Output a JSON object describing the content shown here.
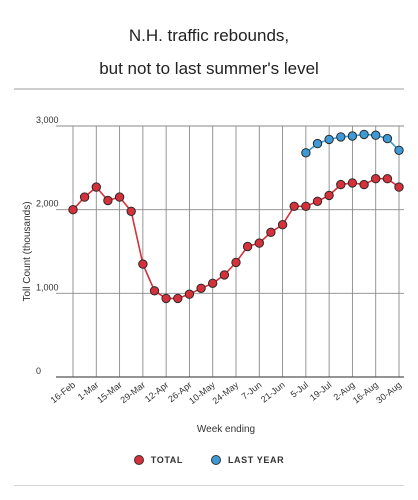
{
  "chart_data": {
    "type": "line",
    "title": "N.H. traffic rebounds, but not to last summer's level",
    "title_lines": [
      "N.H. traffic rebounds,",
      "but not to last summer's level"
    ],
    "xlabel": "Week ending",
    "ylabel": "Toll Count (thousands)",
    "ylim": [
      0,
      3000
    ],
    "yticks": [
      0,
      1000,
      2000,
      3000
    ],
    "ytick_labels": [
      "0",
      "1,000",
      "2,000",
      "3,000"
    ],
    "grid": true,
    "legend_position": "bottom",
    "x_tick_labels": [
      "16-Feb",
      "1-Mar",
      "15-Mar",
      "29-Mar",
      "12-Apr",
      "26-Apr",
      "10-May",
      "24-May",
      "7-Jun",
      "21-Jun",
      "5-Jul",
      "19-Jul",
      "2-Aug",
      "16-Aug",
      "30-Aug"
    ],
    "week_count": 29,
    "series": [
      {
        "name": "TOTAL",
        "color": "#d6303a",
        "start_index": 0,
        "values": [
          2000,
          2150,
          2270,
          2110,
          2150,
          1980,
          1350,
          1030,
          940,
          940,
          990,
          1060,
          1120,
          1220,
          1370,
          1560,
          1600,
          1730,
          1820,
          2040,
          2040,
          2100,
          2170,
          2300,
          2320,
          2300,
          2370,
          2370,
          2270
        ]
      },
      {
        "name": "LAST YEAR",
        "color": "#3d9ad6",
        "start_index": 20,
        "values": [
          2680,
          2790,
          2840,
          2870,
          2880,
          2900,
          2890,
          2850,
          2710
        ]
      }
    ]
  },
  "legend": {
    "total_label": "TOTAL",
    "last_year_label": "LAST YEAR"
  }
}
